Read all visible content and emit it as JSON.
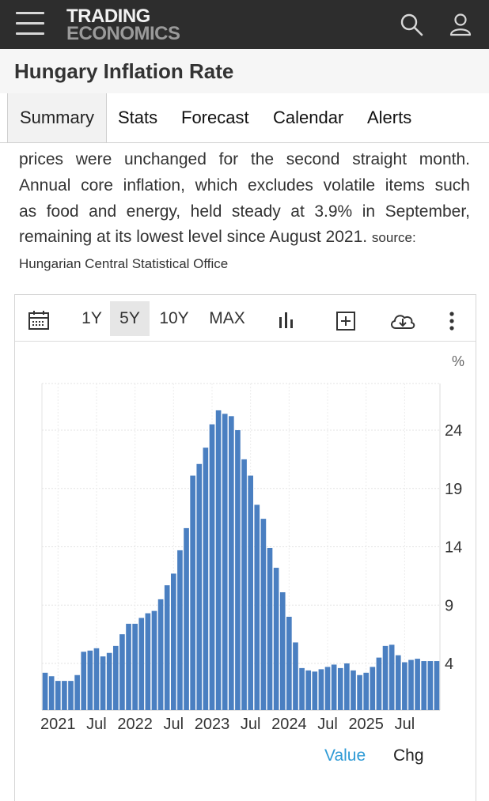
{
  "header": {
    "logo_line1": "TRADING",
    "logo_line2": "ECONOMICS",
    "menu_icon": "hamburger-menu-icon",
    "search_icon": "search-icon",
    "user_icon": "user-icon"
  },
  "page": {
    "title": "Hungary Inflation Rate"
  },
  "tabs": [
    {
      "label": "Summary",
      "active": true
    },
    {
      "label": "Stats"
    },
    {
      "label": "Forecast"
    },
    {
      "label": "Calendar"
    },
    {
      "label": "Alerts"
    }
  ],
  "description": {
    "lines": [
      "prices were unchanged for the second straight month.",
      "Annual core inflation, which excludes volatile items such",
      "as food and energy, held steady at 3.9% in September,",
      "remaining at its lowest level since August 2021."
    ],
    "source_label": "source:",
    "source": "Hungarian Central Statistical Office"
  },
  "toolbar": {
    "ranges": [
      "1Y",
      "5Y",
      "10Y",
      "MAX"
    ],
    "active_range": "5Y",
    "icons": [
      "calendar-icon",
      "bar-chart-icon",
      "add-compare-icon",
      "download-icon",
      "more-options-icon"
    ]
  },
  "legend": {
    "value_label": "Value",
    "chg_label": "Chg",
    "value_color": "#2f9bd6"
  },
  "chart_data": {
    "type": "bar",
    "color": "#4a7fc1",
    "unit_label": "%",
    "yticks": [
      "4",
      "9",
      "14",
      "19",
      "24"
    ],
    "ylim": [
      0,
      28
    ],
    "xtick_labels": [
      "2021",
      "Jul",
      "2022",
      "Jul",
      "2023",
      "Jul",
      "2024",
      "Jul",
      "2025",
      "Jul"
    ],
    "grid": true,
    "start": "2020-11",
    "values": [
      3.2,
      2.9,
      2.5,
      2.5,
      2.5,
      3.0,
      5.0,
      5.1,
      5.3,
      4.6,
      4.9,
      5.5,
      6.5,
      7.4,
      7.4,
      7.9,
      8.3,
      8.5,
      9.5,
      10.7,
      11.7,
      13.7,
      15.6,
      20.1,
      21.1,
      22.5,
      24.5,
      25.7,
      25.4,
      25.2,
      24.0,
      21.5,
      20.1,
      17.6,
      16.4,
      13.9,
      12.2,
      10.1,
      8.0,
      5.8,
      3.6,
      3.4,
      3.3,
      3.5,
      3.7,
      3.9,
      3.6,
      4.0,
      3.4,
      3.0,
      3.2,
      3.7,
      4.5,
      5.5,
      5.6,
      4.7,
      4.1,
      4.3,
      4.4,
      4.2,
      4.2,
      4.2
    ]
  }
}
